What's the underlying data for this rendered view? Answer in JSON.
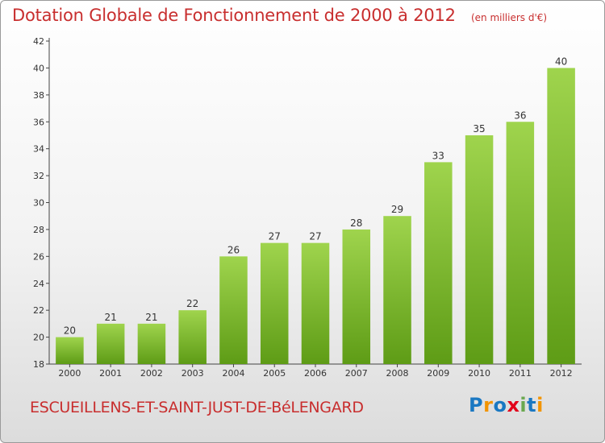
{
  "header": {
    "title": "Dotation Globale de Fonctionnement de 2000 à 2012",
    "unit_note": "(en milliers d'€)"
  },
  "footer": {
    "commune": "ESCUEILLENS-ET-SAINT-JUST-DE-BéLENGARD",
    "logo_text": "Proxiti",
    "logo_colors": [
      "#1a78c2",
      "#f29400",
      "#1a78c2",
      "#e2001a",
      "#6aa84f",
      "#1a78c2",
      "#f29400"
    ]
  },
  "chart_data": {
    "type": "bar",
    "title": "Dotation Globale de Fonctionnement de 2000 à 2012",
    "unit": "(en milliers d'€)",
    "categories": [
      "2000",
      "2001",
      "2002",
      "2003",
      "2004",
      "2005",
      "2006",
      "2007",
      "2008",
      "2009",
      "2010",
      "2011",
      "2012"
    ],
    "values": [
      20,
      21,
      21,
      22,
      26,
      27,
      27,
      28,
      29,
      33,
      35,
      36,
      40
    ],
    "ylim": [
      18,
      42
    ],
    "yticks": [
      18,
      20,
      22,
      24,
      26,
      28,
      30,
      32,
      34,
      36,
      38,
      40,
      42
    ],
    "grid": false,
    "legend": "none",
    "bar_color_top": "#9fd44d",
    "bar_color_bottom": "#5e9c16"
  }
}
